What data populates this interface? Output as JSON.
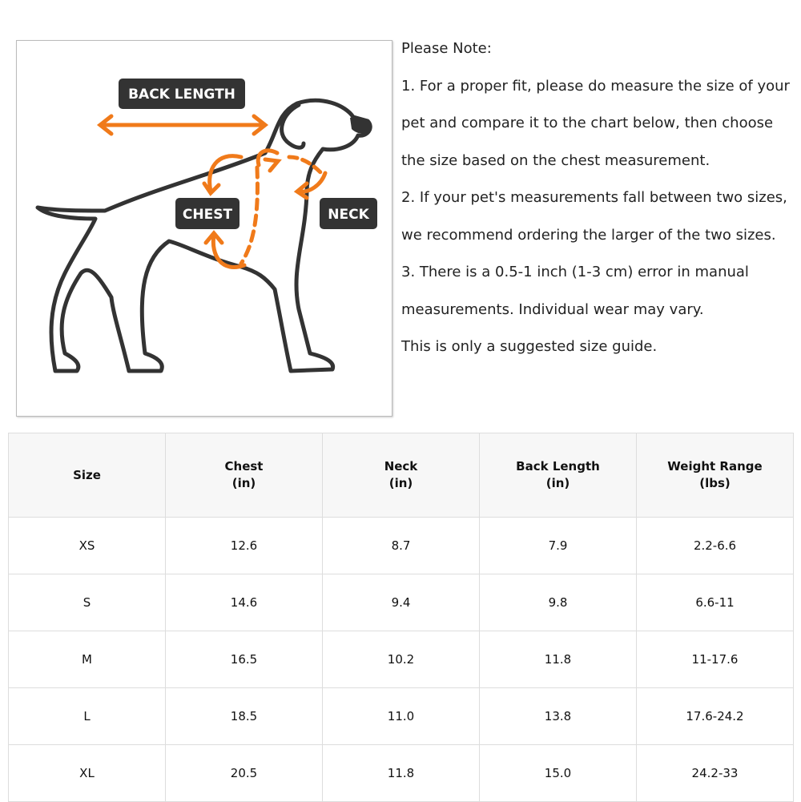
{
  "diagram": {
    "labels": [
      "BACK LENGTH",
      "CHEST",
      "NECK"
    ]
  },
  "note": {
    "title": "Please Note:",
    "paragraphs": [
      "1. For a proper fit, please do measure the size of your pet and compare it to the chart below, then choose the size based on the chest measurement.",
      "2. If your pet's measurements fall between two sizes, we recommend ordering the larger of the two sizes.",
      "3. There is a 0.5-1 inch (1-3 cm) error in manual measurements. Individual wear may vary.",
      "This is only a suggested size guide."
    ]
  },
  "table": {
    "headers": [
      {
        "name": "Size"
      },
      {
        "name": "Chest",
        "unit": "(in)"
      },
      {
        "name": "Neck",
        "unit": "(in)"
      },
      {
        "name": "Back Length",
        "unit": "(in)"
      },
      {
        "name": "Weight Range",
        "unit": "(lbs)"
      }
    ],
    "rows": [
      [
        "XS",
        "12.6",
        "8.7",
        "7.9",
        "2.2-6.6"
      ],
      [
        "S",
        "14.6",
        "9.4",
        "9.8",
        "6.6-11"
      ],
      [
        "M",
        "16.5",
        "10.2",
        "11.8",
        "11-17.6"
      ],
      [
        "L",
        "18.5",
        "11.0",
        "13.8",
        "17.6-24.2"
      ],
      [
        "XL",
        "20.5",
        "11.8",
        "15.0",
        "24.2-33"
      ]
    ]
  }
}
